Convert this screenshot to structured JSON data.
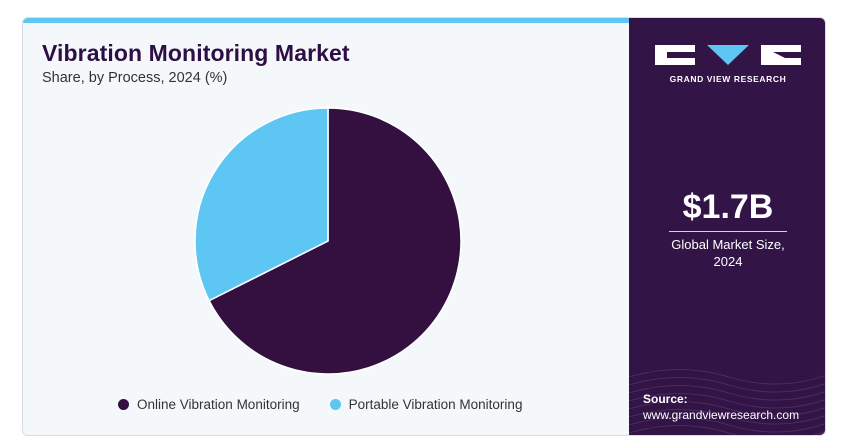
{
  "header": {
    "title": "Vibration Monitoring Market",
    "subtitle": "Share, by Process, 2024 (%)"
  },
  "brand": {
    "name": "GRAND VIEW RESEARCH"
  },
  "market": {
    "value": "$1.7B",
    "label_line1": "Global Market Size,",
    "label_line2": "2024"
  },
  "source": {
    "label": "Source:",
    "url": "www.grandviewresearch.com"
  },
  "colors": {
    "online": "#33103f",
    "portable": "#5ec6f2",
    "panel": "#321447",
    "accent": "#5ec6f2"
  },
  "chart_data": {
    "type": "pie",
    "title": "Vibration Monitoring Market",
    "subtitle": "Share, by Process, 2024 (%)",
    "slices": [
      {
        "label": "Online Vibration Monitoring",
        "value": 67.6,
        "color": "#33103f"
      },
      {
        "label": "Portable Vibration Monitoring",
        "value": 32.4,
        "color": "#5ec6f2"
      }
    ],
    "start_angle_deg": 0,
    "direction": "clockwise",
    "legend": "bottom"
  }
}
